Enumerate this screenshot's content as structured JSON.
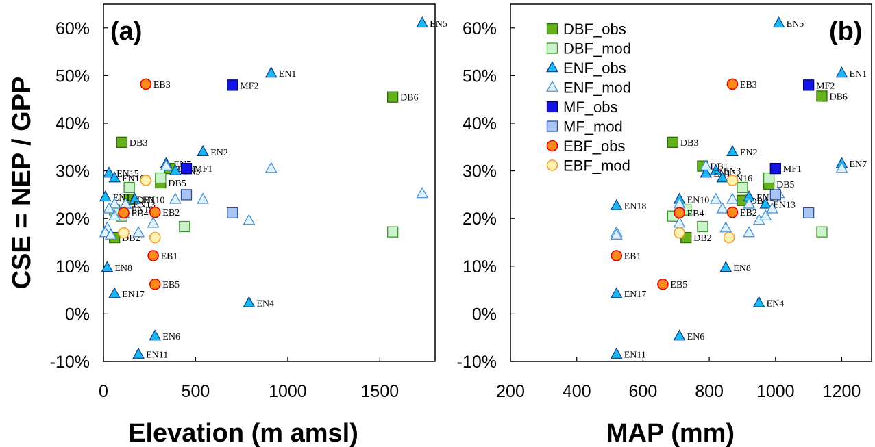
{
  "chart_data": [
    {
      "type": "scatter",
      "panel_label": "(a)",
      "xlabel": "Elevation (m amsl)",
      "ylabel": "CSE = NEP / GPP",
      "xlim": [
        0,
        1800
      ],
      "ylim": [
        -10,
        65
      ],
      "xticks": [
        0,
        500,
        1000,
        1500
      ],
      "yticks": [
        -10,
        0,
        10,
        20,
        30,
        40,
        50,
        60
      ],
      "yticklabels": [
        "-10%",
        "0%",
        "10%",
        "20%",
        "30%",
        "40%",
        "50%",
        "60%"
      ],
      "legend": false,
      "series": [
        {
          "key": "DBF_obs",
          "marker": "square",
          "fill": "#66b21a",
          "stroke": "#2f6a08",
          "points": [
            {
              "x": 100,
              "y": 36,
              "label": "DB3"
            },
            {
              "x": 1570,
              "y": 45.5,
              "label": "DB6"
            },
            {
              "x": 310,
              "y": 27.5,
              "label": "DB5"
            },
            {
              "x": 140,
              "y": 24,
              "label": "DB1"
            },
            {
              "x": 360,
              "y": 30.5,
              "label": "DB4"
            },
            {
              "x": 60,
              "y": 16,
              "label": "DB2"
            }
          ]
        },
        {
          "key": "DBF_mod",
          "marker": "square",
          "fill": "#ccf2cc",
          "stroke": "#3c9a2c",
          "points": [
            {
              "x": 140,
              "y": 26.5
            },
            {
              "x": 310,
              "y": 28.5
            },
            {
              "x": 440,
              "y": 18.3
            },
            {
              "x": 100,
              "y": 20.5
            },
            {
              "x": 60,
              "y": 21.8
            },
            {
              "x": 1570,
              "y": 17.2
            }
          ]
        },
        {
          "key": "ENF_obs",
          "marker": "triangle",
          "fill": "#1ab8f2",
          "stroke": "#0a3d8c",
          "points": [
            {
              "x": 1730,
              "y": 61,
              "label": "EN5"
            },
            {
              "x": 910,
              "y": 50.5,
              "label": "EN1"
            },
            {
              "x": 540,
              "y": 34,
              "label": "EN2"
            },
            {
              "x": 340,
              "y": 31.5,
              "label": "EN7"
            },
            {
              "x": 390,
              "y": 30,
              "label": "EN3"
            },
            {
              "x": 30,
              "y": 29.5,
              "label": "EN15"
            },
            {
              "x": 60,
              "y": 28.5,
              "label": "EN16"
            },
            {
              "x": 10,
              "y": 24.5,
              "label": "EN14"
            },
            {
              "x": 170,
              "y": 24,
              "label": "EN10"
            },
            {
              "x": 120,
              "y": 23,
              "label": "EN13"
            },
            {
              "x": 110,
              "y": 22,
              "label": "EN18"
            },
            {
              "x": 20,
              "y": 9.7,
              "label": "EN8"
            },
            {
              "x": 60,
              "y": 4.2,
              "label": "EN17"
            },
            {
              "x": 790,
              "y": 2.3,
              "label": "EN4"
            },
            {
              "x": 280,
              "y": -4.7,
              "label": "EN6"
            },
            {
              "x": 190,
              "y": -8.5,
              "label": "EN11"
            }
          ]
        },
        {
          "key": "ENF_mod",
          "marker": "triangle",
          "fill": "#e0f2ff",
          "stroke": "#3c8cd8",
          "points": [
            {
              "x": 910,
              "y": 30.5
            },
            {
              "x": 1730,
              "y": 25.2
            },
            {
              "x": 540,
              "y": 24
            },
            {
              "x": 390,
              "y": 24
            },
            {
              "x": 340,
              "y": 31
            },
            {
              "x": 790,
              "y": 19.6
            },
            {
              "x": 270,
              "y": 19
            },
            {
              "x": 190,
              "y": 17
            },
            {
              "x": 20,
              "y": 18
            },
            {
              "x": 10,
              "y": 17
            },
            {
              "x": 40,
              "y": 16.5
            },
            {
              "x": 60,
              "y": 20.5
            },
            {
              "x": 110,
              "y": 21
            },
            {
              "x": 120,
              "y": 23
            },
            {
              "x": 60,
              "y": 23
            },
            {
              "x": 30,
              "y": 22
            }
          ]
        },
        {
          "key": "MF_obs",
          "marker": "square",
          "fill": "#1414e6",
          "stroke": "#000066",
          "points": [
            {
              "x": 700,
              "y": 48,
              "label": "MF2"
            },
            {
              "x": 450,
              "y": 30.5,
              "label": "MF1"
            }
          ]
        },
        {
          "key": "MF_mod",
          "marker": "square",
          "fill": "#a8c4f2",
          "stroke": "#2c4ca0",
          "points": [
            {
              "x": 700,
              "y": 21.2
            },
            {
              "x": 450,
              "y": 25
            }
          ]
        },
        {
          "key": "EBF_obs",
          "marker": "circle",
          "fill": "#ff8c1a",
          "stroke": "#e60000",
          "points": [
            {
              "x": 230,
              "y": 48.2,
              "label": "EB3"
            },
            {
              "x": 280,
              "y": 21.3,
              "label": "EB2"
            },
            {
              "x": 110,
              "y": 21.2,
              "label": "EB4"
            },
            {
              "x": 270,
              "y": 12.2,
              "label": "EB1"
            },
            {
              "x": 280,
              "y": 6.2,
              "label": "EB5"
            }
          ]
        },
        {
          "key": "EBF_mod",
          "marker": "circle",
          "fill": "#fff2b3",
          "stroke": "#f0a032",
          "points": [
            {
              "x": 230,
              "y": 28
            },
            {
              "x": 280,
              "y": 16
            },
            {
              "x": 110,
              "y": 17
            }
          ]
        }
      ]
    },
    {
      "type": "scatter",
      "panel_label": "(b)",
      "xlabel": "MAP (mm)",
      "ylabel": "",
      "xlim": [
        200,
        1290
      ],
      "ylim": [
        -10,
        65
      ],
      "xticks": [
        200,
        400,
        600,
        800,
        1000,
        1200
      ],
      "yticks": [
        -10,
        0,
        10,
        20,
        30,
        40,
        50,
        60
      ],
      "yticklabels": [
        "-10%",
        "0%",
        "10%",
        "20%",
        "30%",
        "40%",
        "50%",
        "60%"
      ],
      "legend": true,
      "legend_position": "top-left",
      "series": [
        {
          "key": "DBF_obs",
          "name": "DBF_obs",
          "marker": "square",
          "fill": "#66b21a",
          "stroke": "#2f6a08",
          "points": [
            {
              "x": 690,
              "y": 36,
              "label": "DB3"
            },
            {
              "x": 1140,
              "y": 45.7,
              "label": "DB6"
            },
            {
              "x": 980,
              "y": 27.2,
              "label": "DB5"
            },
            {
              "x": 780,
              "y": 31,
              "label": "DB1"
            },
            {
              "x": 900,
              "y": 23.8,
              "label": "DB4"
            },
            {
              "x": 730,
              "y": 16,
              "label": "DB2"
            }
          ]
        },
        {
          "key": "DBF_mod",
          "name": "DBF_mod",
          "marker": "square",
          "fill": "#ccf2cc",
          "stroke": "#3c9a2c",
          "points": [
            {
              "x": 900,
              "y": 26.5
            },
            {
              "x": 980,
              "y": 28.5
            },
            {
              "x": 780,
              "y": 18.3
            },
            {
              "x": 690,
              "y": 20.5
            },
            {
              "x": 730,
              "y": 21.8
            },
            {
              "x": 1140,
              "y": 17.2
            }
          ]
        },
        {
          "key": "ENF_obs",
          "name": "ENF_obs",
          "marker": "triangle",
          "fill": "#1ab8f2",
          "stroke": "#0a3d8c",
          "points": [
            {
              "x": 1010,
              "y": 61,
              "label": "EN5"
            },
            {
              "x": 1200,
              "y": 50.5,
              "label": "EN1"
            },
            {
              "x": 870,
              "y": 34,
              "label": "EN2"
            },
            {
              "x": 1200,
              "y": 31.5,
              "label": "EN7"
            },
            {
              "x": 820,
              "y": 30,
              "label": "EN3"
            },
            {
              "x": 790,
              "y": 29.5,
              "label": "EN15"
            },
            {
              "x": 840,
              "y": 28.5,
              "label": "EN16"
            },
            {
              "x": 920,
              "y": 24.5,
              "label": "EN14"
            },
            {
              "x": 710,
              "y": 24,
              "label": "EN10"
            },
            {
              "x": 970,
              "y": 23,
              "label": "EN13"
            },
            {
              "x": 520,
              "y": 22.7,
              "label": "EN18"
            },
            {
              "x": 850,
              "y": 9.7,
              "label": "EN8"
            },
            {
              "x": 520,
              "y": 4.2,
              "label": "EN17"
            },
            {
              "x": 950,
              "y": 2.3,
              "label": "EN4"
            },
            {
              "x": 710,
              "y": -4.7,
              "label": "EN6"
            },
            {
              "x": 520,
              "y": -8.5,
              "label": "EN11"
            }
          ]
        },
        {
          "key": "ENF_mod",
          "name": "ENF_mod",
          "marker": "triangle",
          "fill": "#e0f2ff",
          "stroke": "#3c8cd8",
          "points": [
            {
              "x": 1200,
              "y": 30.5
            },
            {
              "x": 1010,
              "y": 25.2
            },
            {
              "x": 870,
              "y": 24
            },
            {
              "x": 820,
              "y": 24
            },
            {
              "x": 790,
              "y": 31
            },
            {
              "x": 950,
              "y": 19.6
            },
            {
              "x": 710,
              "y": 19
            },
            {
              "x": 920,
              "y": 17
            },
            {
              "x": 850,
              "y": 18
            },
            {
              "x": 520,
              "y": 17
            },
            {
              "x": 520,
              "y": 16.5
            },
            {
              "x": 970,
              "y": 20.5
            },
            {
              "x": 840,
              "y": 22
            },
            {
              "x": 920,
              "y": 23
            },
            {
              "x": 710,
              "y": 23
            },
            {
              "x": 990,
              "y": 22
            }
          ]
        },
        {
          "key": "MF_obs",
          "name": "MF_obs",
          "marker": "square",
          "fill": "#1414e6",
          "stroke": "#000066",
          "points": [
            {
              "x": 1100,
              "y": 48,
              "label": "MF2"
            },
            {
              "x": 1000,
              "y": 30.5,
              "label": "MF1"
            }
          ]
        },
        {
          "key": "MF_mod",
          "name": "MF_mod",
          "marker": "square",
          "fill": "#a8c4f2",
          "stroke": "#2c4ca0",
          "points": [
            {
              "x": 1100,
              "y": 21.2
            },
            {
              "x": 1000,
              "y": 25
            }
          ]
        },
        {
          "key": "EBF_obs",
          "name": "EBF_obs",
          "marker": "circle",
          "fill": "#ff8c1a",
          "stroke": "#e60000",
          "points": [
            {
              "x": 870,
              "y": 48.2,
              "label": "EB3"
            },
            {
              "x": 870,
              "y": 21.3,
              "label": "EB2"
            },
            {
              "x": 710,
              "y": 21.2,
              "label": "EB4"
            },
            {
              "x": 520,
              "y": 12.2,
              "label": "EB1"
            },
            {
              "x": 660,
              "y": 6.2,
              "label": "EB5"
            }
          ]
        },
        {
          "key": "EBF_mod",
          "name": "EBF_mod",
          "marker": "circle",
          "fill": "#fff2b3",
          "stroke": "#f0a032",
          "points": [
            {
              "x": 870,
              "y": 28
            },
            {
              "x": 860,
              "y": 16
            },
            {
              "x": 710,
              "y": 17
            }
          ]
        }
      ]
    }
  ]
}
